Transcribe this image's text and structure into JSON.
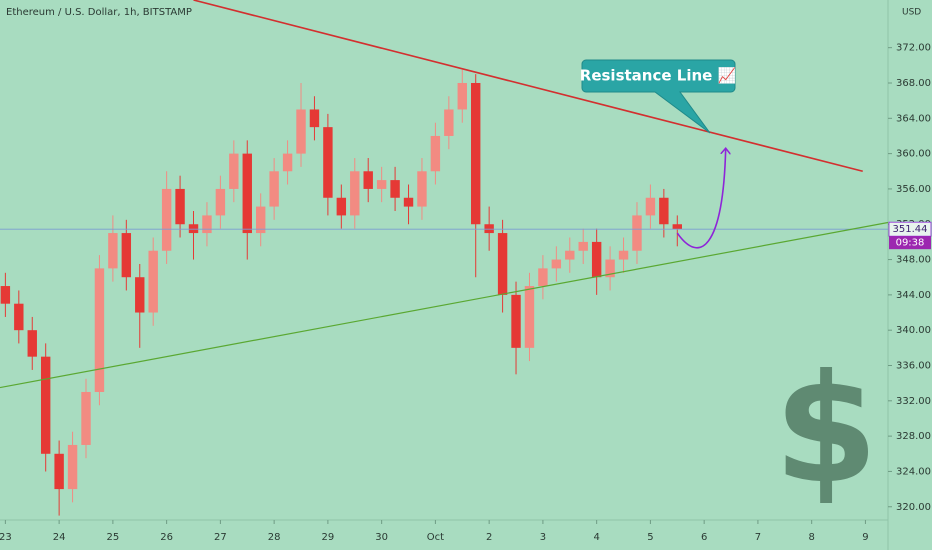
{
  "chart_data": {
    "type": "candlestick",
    "title": "Ethereum / U.S. Dollar, 1h, BITSTAMP",
    "y_unit": "USD",
    "x": [
      23,
      23.25,
      23.5,
      23.75,
      24,
      24.25,
      24.5,
      24.75,
      25,
      25.25,
      25.5,
      25.75,
      26,
      26.25,
      26.5,
      26.75,
      27,
      27.25,
      27.5,
      27.75,
      28,
      28.25,
      28.5,
      28.75,
      29,
      29.25,
      29.5,
      29.75,
      30,
      30.25,
      30.5,
      30.75,
      31,
      31.25,
      31.5,
      31.75,
      32,
      32.25,
      32.5,
      32.75,
      33,
      33.25,
      33.5,
      33.75,
      34,
      34.25,
      34.5,
      34.75,
      35,
      35.25,
      35.5
    ],
    "open": [
      345,
      343,
      340,
      337,
      326,
      322,
      327,
      333,
      347,
      351,
      346,
      342,
      349,
      356,
      352,
      351,
      353,
      356,
      360,
      351,
      354,
      358,
      360,
      365,
      363,
      355,
      353,
      358,
      356,
      357,
      355,
      354,
      358,
      362,
      365,
      368,
      352,
      351,
      344,
      338,
      345,
      347,
      348,
      349,
      350,
      346,
      348,
      349,
      353,
      355,
      352
    ],
    "high": [
      346.5,
      344.5,
      341.5,
      338.5,
      327.5,
      328.5,
      334.5,
      348.5,
      353,
      352.5,
      347.5,
      350.5,
      358,
      357.5,
      353.5,
      354.5,
      357.5,
      361.5,
      361.5,
      355.5,
      359.5,
      361.5,
      368,
      366.5,
      364.5,
      356.5,
      359.5,
      359.5,
      358.5,
      358.5,
      356.5,
      359.5,
      363.5,
      366.5,
      369.5,
      369,
      354,
      352.5,
      345.5,
      346.5,
      348.5,
      349.5,
      350.5,
      351.5,
      351.5,
      349.5,
      350.5,
      354.5,
      356.5,
      356,
      353
    ],
    "low": [
      341.5,
      338.5,
      335.5,
      324,
      319,
      320.5,
      325.5,
      331.5,
      345.5,
      344.5,
      338,
      340.5,
      347.5,
      350.5,
      348,
      349.5,
      351.5,
      354.5,
      348,
      349.5,
      352.5,
      356.5,
      358.5,
      361.5,
      353,
      351.5,
      351.5,
      354.5,
      354.5,
      353.5,
      352,
      352.5,
      356.5,
      360.5,
      363.5,
      346,
      349,
      342,
      335,
      336.5,
      343.5,
      345.5,
      346.5,
      347.5,
      344,
      344.5,
      346.5,
      347.5,
      351.5,
      350.5,
      349.5
    ],
    "close": [
      343,
      340,
      337,
      326,
      322,
      327,
      333,
      347,
      351,
      346,
      342,
      349,
      356,
      352,
      351,
      353,
      356,
      360,
      351,
      354,
      358,
      360,
      365,
      363,
      355,
      353,
      358,
      356,
      357,
      355,
      354,
      358,
      362,
      365,
      368,
      352,
      351,
      344,
      338,
      345,
      347,
      348,
      349,
      350,
      346,
      348,
      349,
      353,
      355,
      352,
      351.44
    ],
    "up_color": "#f28b82",
    "down_color": "#e53935",
    "last_price": 351.44,
    "last_price_color": "#7b9bd1",
    "timer": "09:38",
    "xlim": [
      22.9,
      39.42
    ],
    "ylim": [
      318.5,
      377.4
    ],
    "xticks": [
      23,
      24,
      25,
      26,
      27,
      28,
      29,
      30,
      {
        "value": 31,
        "label": "Oct"
      },
      {
        "value": 32,
        "label": "2"
      },
      {
        "value": 33,
        "label": "3"
      },
      {
        "value": 34,
        "label": "4"
      },
      {
        "value": 35,
        "label": "5"
      },
      {
        "value": 36,
        "label": "6"
      },
      {
        "value": 37,
        "label": "7"
      },
      {
        "value": 38,
        "label": "8"
      },
      {
        "value": 39,
        "label": "9"
      }
    ],
    "yticks": [
      {
        "value": 320,
        "label": "320.00"
      },
      {
        "value": 324,
        "label": "324.00"
      },
      {
        "value": 328,
        "label": "328.00"
      },
      {
        "value": 332,
        "label": "332.00"
      },
      {
        "value": 336,
        "label": "336.00"
      },
      {
        "value": 340,
        "label": "340.00"
      },
      {
        "value": 344,
        "label": "344.00"
      },
      {
        "value": 348,
        "label": "348.00"
      },
      {
        "value": 352,
        "label": "352.00"
      },
      {
        "value": 356,
        "label": "356.00"
      },
      {
        "value": 360,
        "label": "360.00"
      },
      {
        "value": 364,
        "label": "364.00"
      },
      {
        "value": 368,
        "label": "368.00"
      },
      {
        "value": 372,
        "label": "372.00"
      }
    ],
    "grid": false,
    "lines": [
      {
        "color": "#d32f2f",
        "points": [
          [
            26.5,
            377.4
          ],
          [
            38.95,
            358
          ]
        ]
      },
      {
        "color": "#5aa832",
        "points": [
          [
            22.9,
            333.5
          ],
          [
            39.42,
            352.2
          ]
        ]
      }
    ],
    "forecast": {
      "color": "#8e24d8",
      "points": [
        [
          35.5,
          351
        ],
        [
          35.9,
          347.5
        ],
        [
          36.35,
          349
        ],
        [
          36.4,
          360.5
        ]
      ]
    },
    "annotation": "Resistance Line 📈",
    "watermark": "$"
  }
}
